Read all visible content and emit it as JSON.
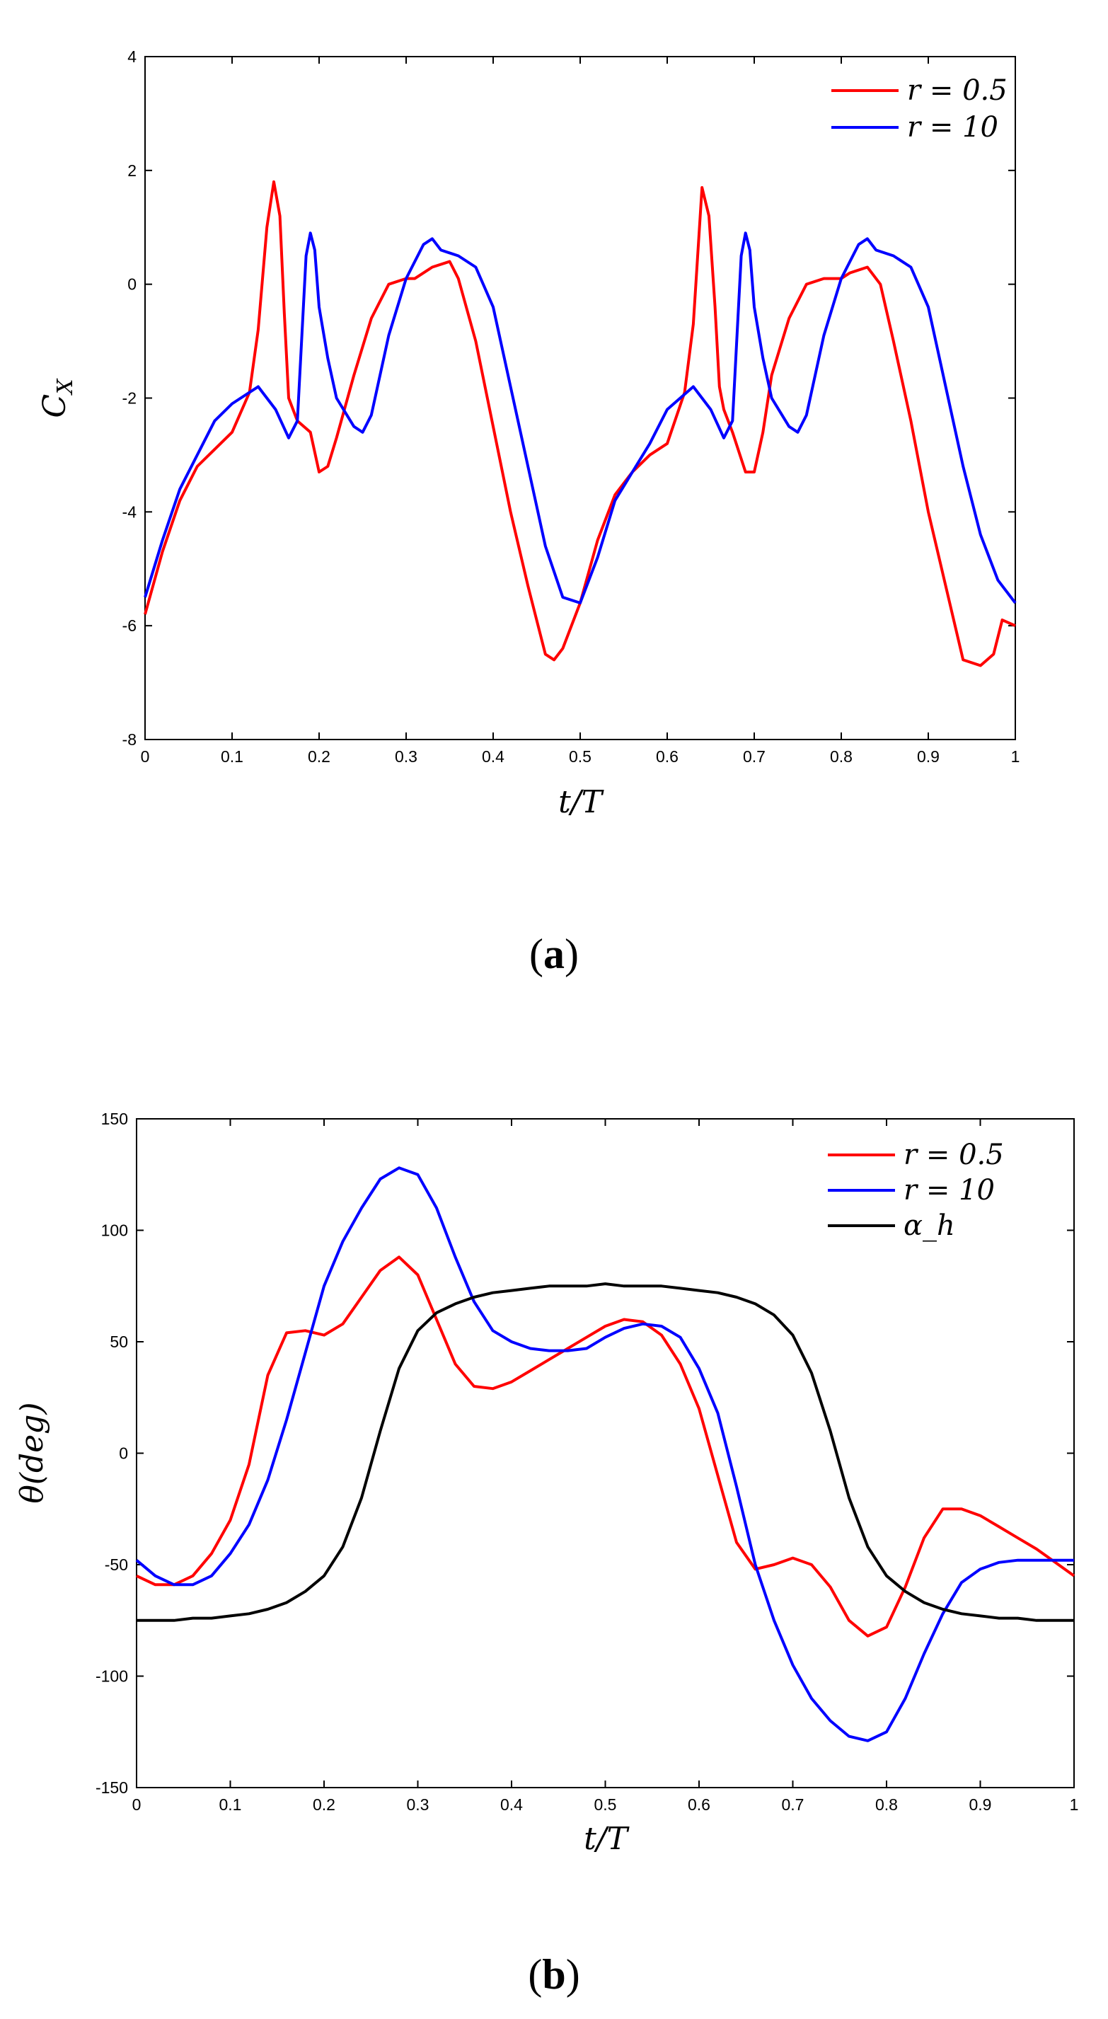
{
  "chart_data": [
    {
      "type": "line",
      "panel_label": "(a)",
      "panel_letter": "a",
      "title": "",
      "xlabel": "t/T",
      "ylabel": "C_X",
      "ylabel_main": "C",
      "ylabel_sub": "X",
      "xlim": [
        0,
        1
      ],
      "ylim": [
        -8,
        4
      ],
      "xticks": [
        0,
        0.1,
        0.2,
        0.3,
        0.4,
        0.5,
        0.6,
        0.7,
        0.8,
        0.9,
        1
      ],
      "xtick_labels": [
        "0",
        "0.1",
        "0.2",
        "0.3",
        "0.4",
        "0.5",
        "0.6",
        "0.7",
        "0.8",
        "0.9",
        "1"
      ],
      "yticks": [
        -8,
        -6,
        -4,
        -2,
        0,
        2,
        4
      ],
      "ytick_labels": [
        "-8",
        "-6",
        "-4",
        "-2",
        "0",
        "2",
        "4"
      ],
      "grid": false,
      "legend_position": "top-right",
      "series": [
        {
          "name": "r = 0.5",
          "color": "#ff0000",
          "x": [
            0,
            0.02,
            0.04,
            0.06,
            0.08,
            0.1,
            0.12,
            0.13,
            0.14,
            0.148,
            0.155,
            0.16,
            0.165,
            0.175,
            0.19,
            0.2,
            0.21,
            0.22,
            0.24,
            0.26,
            0.28,
            0.3,
            0.31,
            0.33,
            0.35,
            0.36,
            0.38,
            0.4,
            0.42,
            0.44,
            0.46,
            0.47,
            0.48,
            0.5,
            0.52,
            0.54,
            0.56,
            0.58,
            0.6,
            0.62,
            0.63,
            0.64,
            0.648,
            0.655,
            0.66,
            0.665,
            0.675,
            0.69,
            0.7,
            0.71,
            0.72,
            0.74,
            0.76,
            0.78,
            0.8,
            0.81,
            0.83,
            0.845,
            0.86,
            0.88,
            0.9,
            0.92,
            0.94,
            0.96,
            0.975,
            0.985,
            1.0
          ],
          "y": [
            -5.8,
            -4.7,
            -3.8,
            -3.2,
            -2.9,
            -2.6,
            -1.9,
            -0.8,
            1.0,
            1.8,
            1.2,
            -0.5,
            -2.0,
            -2.4,
            -2.6,
            -3.3,
            -3.2,
            -2.7,
            -1.6,
            -0.6,
            0.0,
            0.1,
            0.1,
            0.3,
            0.4,
            0.1,
            -1.0,
            -2.5,
            -4.0,
            -5.3,
            -6.5,
            -6.6,
            -6.4,
            -5.6,
            -4.5,
            -3.7,
            -3.3,
            -3.0,
            -2.8,
            -1.9,
            -0.7,
            1.7,
            1.2,
            -0.4,
            -1.8,
            -2.2,
            -2.6,
            -3.3,
            -3.3,
            -2.6,
            -1.6,
            -0.6,
            0.0,
            0.1,
            0.1,
            0.2,
            0.3,
            0.0,
            -1.0,
            -2.4,
            -4.0,
            -5.3,
            -6.6,
            -6.7,
            -6.5,
            -5.9,
            -6.0
          ]
        },
        {
          "name": "r = 10",
          "color": "#0000ff",
          "x": [
            0,
            0.02,
            0.04,
            0.06,
            0.08,
            0.1,
            0.13,
            0.15,
            0.165,
            0.175,
            0.185,
            0.19,
            0.195,
            0.2,
            0.21,
            0.22,
            0.24,
            0.25,
            0.26,
            0.28,
            0.3,
            0.32,
            0.33,
            0.34,
            0.36,
            0.38,
            0.4,
            0.42,
            0.44,
            0.46,
            0.48,
            0.5,
            0.52,
            0.54,
            0.56,
            0.58,
            0.6,
            0.63,
            0.65,
            0.665,
            0.675,
            0.685,
            0.69,
            0.695,
            0.7,
            0.71,
            0.72,
            0.74,
            0.75,
            0.76,
            0.78,
            0.8,
            0.82,
            0.83,
            0.84,
            0.86,
            0.88,
            0.9,
            0.92,
            0.94,
            0.96,
            0.98,
            1.0
          ],
          "y": [
            -5.5,
            -4.5,
            -3.6,
            -3.0,
            -2.4,
            -2.1,
            -1.8,
            -2.2,
            -2.7,
            -2.4,
            0.5,
            0.9,
            0.6,
            -0.4,
            -1.3,
            -2.0,
            -2.5,
            -2.6,
            -2.3,
            -0.9,
            0.1,
            0.7,
            0.8,
            0.6,
            0.5,
            0.3,
            -0.4,
            -1.8,
            -3.2,
            -4.6,
            -5.5,
            -5.6,
            -4.8,
            -3.8,
            -3.3,
            -2.8,
            -2.2,
            -1.8,
            -2.2,
            -2.7,
            -2.4,
            0.5,
            0.9,
            0.6,
            -0.4,
            -1.3,
            -2.0,
            -2.5,
            -2.6,
            -2.3,
            -0.9,
            0.1,
            0.7,
            0.8,
            0.6,
            0.5,
            0.3,
            -0.4,
            -1.8,
            -3.2,
            -4.4,
            -5.2,
            -5.6
          ]
        }
      ]
    },
    {
      "type": "line",
      "panel_label": "(b)",
      "panel_letter": "b",
      "title": "",
      "xlabel": "t/T",
      "ylabel": "θ(deg)",
      "xlim": [
        0,
        1
      ],
      "ylim": [
        -150,
        150
      ],
      "xticks": [
        0,
        0.1,
        0.2,
        0.3,
        0.4,
        0.5,
        0.6,
        0.7,
        0.8,
        0.9,
        1
      ],
      "xtick_labels": [
        "0",
        "0.1",
        "0.2",
        "0.3",
        "0.4",
        "0.5",
        "0.6",
        "0.7",
        "0.8",
        "0.9",
        "1"
      ],
      "yticks": [
        -150,
        -100,
        -50,
        0,
        50,
        100,
        150
      ],
      "ytick_labels": [
        "-150",
        "-100",
        "-50",
        "0",
        "50",
        "100",
        "150"
      ],
      "grid": false,
      "legend_position": "top-right",
      "series": [
        {
          "name": "r = 0.5",
          "color": "#ff0000",
          "x": [
            0,
            0.02,
            0.04,
            0.06,
            0.08,
            0.1,
            0.12,
            0.14,
            0.16,
            0.18,
            0.2,
            0.22,
            0.24,
            0.26,
            0.28,
            0.3,
            0.32,
            0.34,
            0.36,
            0.38,
            0.4,
            0.42,
            0.44,
            0.46,
            0.48,
            0.5,
            0.52,
            0.54,
            0.56,
            0.58,
            0.6,
            0.62,
            0.64,
            0.66,
            0.68,
            0.7,
            0.72,
            0.74,
            0.76,
            0.78,
            0.8,
            0.82,
            0.84,
            0.86,
            0.88,
            0.9,
            0.92,
            0.94,
            0.96,
            0.98,
            1.0
          ],
          "y": [
            -55,
            -59,
            -59,
            -55,
            -45,
            -30,
            -5,
            35,
            54,
            55,
            53,
            58,
            70,
            82,
            88,
            80,
            60,
            40,
            30,
            29,
            32,
            37,
            42,
            47,
            52,
            57,
            60,
            59,
            53,
            40,
            20,
            -10,
            -40,
            -52,
            -50,
            -47,
            -50,
            -60,
            -75,
            -82,
            -78,
            -60,
            -38,
            -25,
            -25,
            -28,
            -33,
            -38,
            -43,
            -49,
            -55
          ]
        },
        {
          "name": "r = 10",
          "color": "#0000ff",
          "x": [
            0,
            0.02,
            0.04,
            0.06,
            0.08,
            0.1,
            0.12,
            0.14,
            0.16,
            0.18,
            0.2,
            0.22,
            0.24,
            0.26,
            0.28,
            0.3,
            0.32,
            0.34,
            0.36,
            0.38,
            0.4,
            0.42,
            0.44,
            0.46,
            0.48,
            0.5,
            0.52,
            0.54,
            0.56,
            0.58,
            0.6,
            0.62,
            0.64,
            0.66,
            0.68,
            0.7,
            0.72,
            0.74,
            0.76,
            0.78,
            0.8,
            0.82,
            0.84,
            0.86,
            0.88,
            0.9,
            0.92,
            0.94,
            0.96,
            0.98,
            1.0
          ],
          "y": [
            -48,
            -55,
            -59,
            -59,
            -55,
            -45,
            -32,
            -12,
            15,
            45,
            75,
            95,
            110,
            123,
            128,
            125,
            110,
            88,
            68,
            55,
            50,
            47,
            46,
            46,
            47,
            52,
            56,
            58,
            57,
            52,
            38,
            18,
            -15,
            -50,
            -75,
            -95,
            -110,
            -120,
            -127,
            -129,
            -125,
            -110,
            -90,
            -72,
            -58,
            -52,
            -49,
            -48,
            -48,
            -48,
            -48
          ]
        },
        {
          "name": "α_h",
          "color": "#000000",
          "x": [
            0,
            0.02,
            0.04,
            0.06,
            0.08,
            0.1,
            0.12,
            0.14,
            0.16,
            0.18,
            0.2,
            0.22,
            0.24,
            0.26,
            0.28,
            0.3,
            0.32,
            0.34,
            0.36,
            0.38,
            0.4,
            0.42,
            0.44,
            0.46,
            0.48,
            0.5,
            0.52,
            0.54,
            0.56,
            0.58,
            0.6,
            0.62,
            0.64,
            0.66,
            0.68,
            0.7,
            0.72,
            0.74,
            0.76,
            0.78,
            0.8,
            0.82,
            0.84,
            0.86,
            0.88,
            0.9,
            0.92,
            0.94,
            0.96,
            0.98,
            1.0
          ],
          "y": [
            -75,
            -75,
            -75,
            -74,
            -74,
            -73,
            -72,
            -70,
            -67,
            -62,
            -55,
            -42,
            -20,
            10,
            38,
            55,
            63,
            67,
            70,
            72,
            73,
            74,
            75,
            75,
            75,
            76,
            75,
            75,
            75,
            74,
            73,
            72,
            70,
            67,
            62,
            53,
            36,
            10,
            -20,
            -42,
            -55,
            -62,
            -67,
            -70,
            -72,
            -73,
            -74,
            -74,
            -75,
            -75,
            -75
          ]
        }
      ]
    }
  ]
}
